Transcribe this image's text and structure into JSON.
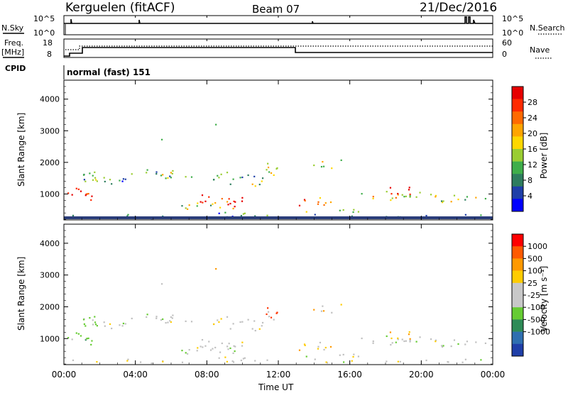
{
  "header": {
    "station": "Kerguelen (fitACF)",
    "beam": "Beam 07",
    "date": "21/Dec/2016"
  },
  "nsky_panel": {
    "left_label": "N.Sky",
    "right_label": "N.Search",
    "left_ticks": [
      "10^5",
      "10^0"
    ],
    "right_ticks": [
      "10^5",
      "10^0"
    ]
  },
  "freq_panel": {
    "left_label_1": "Freq.",
    "left_label_2": "[MHz]",
    "right_label": "Nave",
    "left_ticks": [
      "18",
      "8"
    ],
    "right_ticks": [
      "60",
      "0"
    ],
    "cpid_label": "CPID",
    "cpid_text": "normal (fast) 151"
  },
  "chart_data": [
    {
      "type": "heatmap",
      "ylabel": "Slant Range [km]",
      "ylim": [
        180,
        4600
      ],
      "yticks": [
        "1000",
        "2000",
        "3000",
        "4000"
      ],
      "colorbar_label": "Power [dB]",
      "colorbar_ticks": [
        "4",
        "8",
        "12",
        "16",
        "20",
        "24",
        "28"
      ],
      "colorbar_colors": [
        "#0000ff",
        "#1f3fa8",
        "#2e7d5e",
        "#3fae4a",
        "#9acd32",
        "#ffd700",
        "#ffa500",
        "#ff6a00",
        "#ff2a00",
        "#e60000"
      ]
    },
    {
      "type": "heatmap",
      "ylabel": "Slant Range [km]",
      "ylim": [
        180,
        4600
      ],
      "yticks": [
        "1000",
        "2000",
        "3000",
        "4000"
      ],
      "colorbar_label": "Velocity [m s⁻¹]",
      "colorbar_ticks": [
        "1000",
        "500",
        "100",
        "25",
        "-25",
        "-100",
        "-500",
        "-1000"
      ],
      "colorbar_colors": [
        "#1f3fa8",
        "#2f6fb0",
        "#2e8b57",
        "#66cc33",
        "#c8c8c8",
        "#c8c8c8",
        "#ffcc00",
        "#ff9900",
        "#ff5a00",
        "#ff0000"
      ]
    }
  ],
  "x_axis": {
    "xlabel": "Time UT",
    "xticks": [
      "00:00",
      "04:00",
      "08:00",
      "12:00",
      "16:00",
      "20:00",
      "00:00"
    ]
  },
  "colors": {
    "ground_scatter": "#c0c0c0"
  }
}
